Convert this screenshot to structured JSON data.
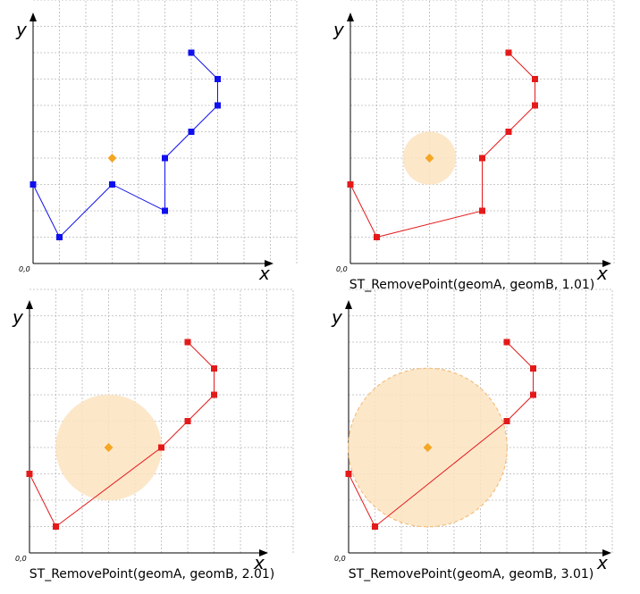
{
  "colors": {
    "blue_geom": "#1010ee",
    "red_geom": "#e41a1a",
    "point_b": "#f5a623",
    "buffer_fill": "#fbe3c0",
    "buffer_stroke": "#f3b66b"
  },
  "axes": {
    "x_label": "x",
    "y_label": "y",
    "origin_label": "0,0"
  },
  "geometry": {
    "geomA": [
      [
        0,
        3
      ],
      [
        1,
        1
      ],
      [
        3,
        3
      ],
      [
        5,
        2
      ],
      [
        5,
        4
      ],
      [
        6,
        5
      ],
      [
        7,
        6
      ],
      [
        7,
        7
      ],
      [
        6,
        8
      ]
    ],
    "geomB": [
      3,
      4
    ]
  },
  "panels": [
    {
      "id": "original",
      "caption": "",
      "color": "blue",
      "radius": 0,
      "removed": []
    },
    {
      "id": "r101",
      "caption": "ST_RemovePoint(geomA, geomB, 1.01)",
      "color": "red",
      "radius": 1.01,
      "removed": [
        2
      ]
    },
    {
      "id": "r201",
      "caption": "ST_RemovePoint(geomA, geomB, 2.01)",
      "color": "red",
      "radius": 2.01,
      "removed": [
        2,
        3
      ]
    },
    {
      "id": "r301",
      "caption": "ST_RemovePoint(geomA, geomB, 3.01)",
      "color": "red",
      "radius": 3.01,
      "removed": [
        2,
        3,
        4
      ]
    }
  ]
}
